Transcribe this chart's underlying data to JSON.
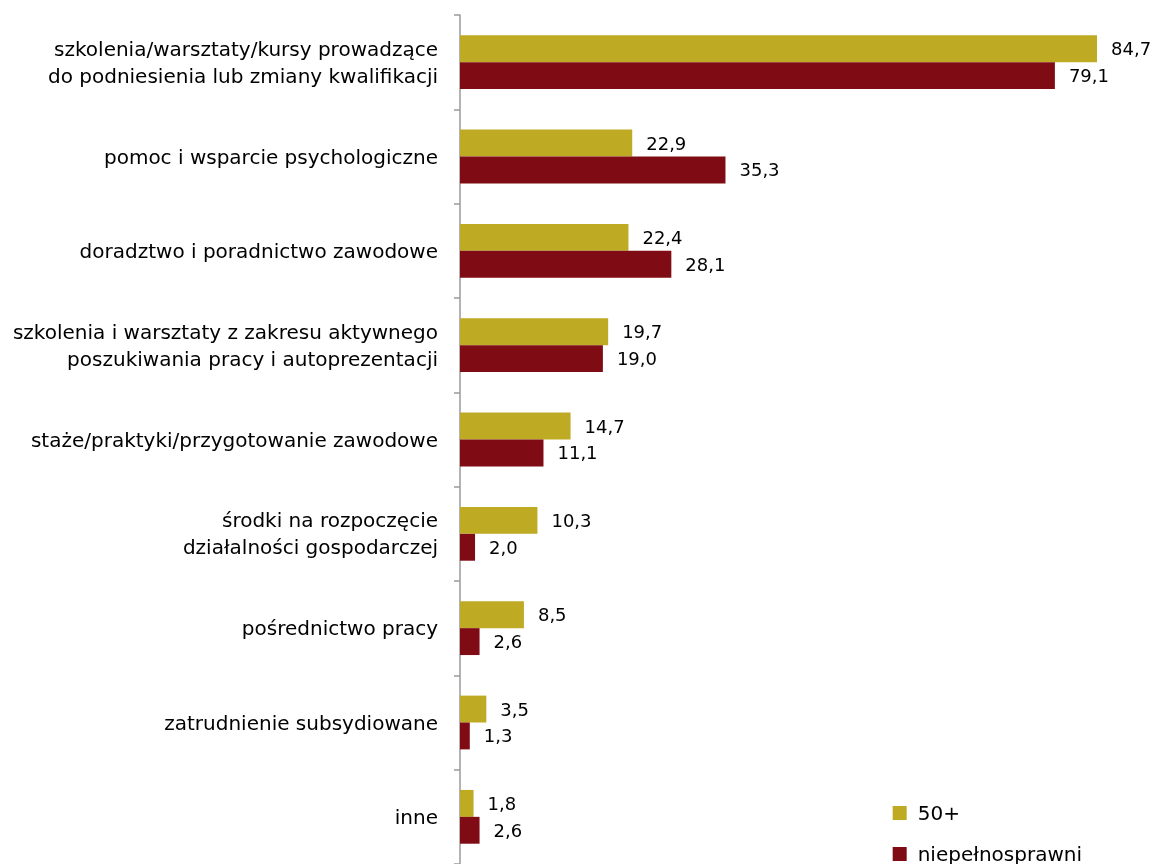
{
  "chart_data": {
    "type": "bar",
    "orientation": "horizontal",
    "categories": [
      "szkolenia/warsztaty/kursy prowadzące\ndo podniesienia lub zmiany kwalifikacji",
      "pomoc i wsparcie psychologiczne",
      "doradztwo i poradnictwo zawodowe",
      "szkolenia i warsztaty z zakresu aktywnego\nposzukiwania pracy i autoprezentacji",
      "staże/praktyki/przygotowanie zawodowe",
      "środki na rozpoczęcie\ndziałalności gospodarczej",
      "pośrednictwo pracy",
      "zatrudnienie subsydiowane",
      "inne"
    ],
    "series": [
      {
        "name": "50+",
        "color": "#bfaa24",
        "values": [
          84.7,
          22.9,
          22.4,
          19.7,
          14.7,
          10.3,
          8.5,
          3.5,
          1.8
        ],
        "value_labels": [
          "84,7",
          "22,9",
          "22,4",
          "19,7",
          "14,7",
          "10,3",
          "8,5",
          "3,5",
          "1,8"
        ]
      },
      {
        "name": "niepełnosprawni",
        "color": "#7f0c15",
        "values": [
          79.1,
          35.3,
          28.1,
          19.0,
          11.1,
          2.0,
          2.6,
          1.3,
          2.6
        ],
        "value_labels": [
          "79,1",
          "35,3",
          "28,1",
          "19,0",
          "11,1",
          "2,0",
          "2,6",
          "1,3",
          "2,6"
        ]
      }
    ],
    "legend": "bottom right",
    "grid": false,
    "tick_labels": "y"
  }
}
